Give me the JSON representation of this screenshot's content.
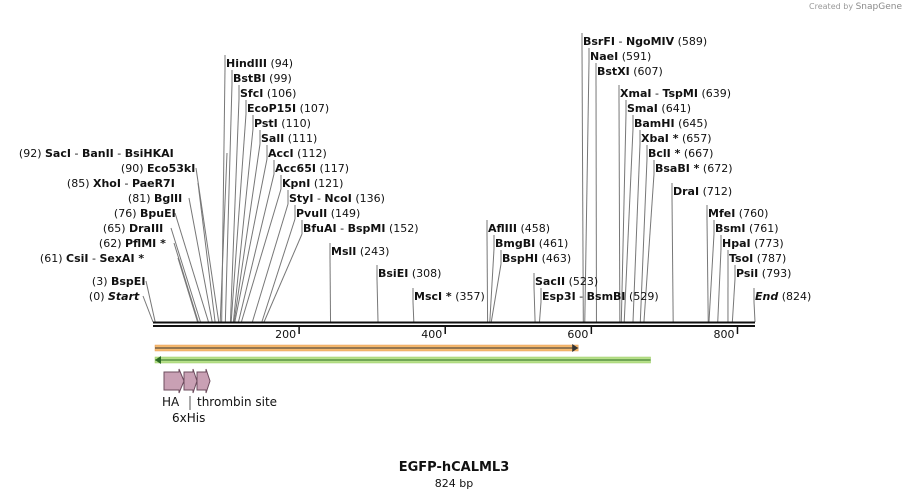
{
  "watermark": {
    "prefix": "Created by",
    "brand": "SnapGene"
  },
  "construct": {
    "name": "EGFP-hCALML3",
    "length_label": "824 bp",
    "length_bp": 824
  },
  "axis": {
    "ticks": [
      200,
      400,
      600,
      800
    ]
  },
  "features": {
    "orange_arrow": {
      "start": 1,
      "end": 582,
      "direction": "forward",
      "fill": "#f6b96e",
      "stroke": "#b8860b"
    },
    "green_arrow": {
      "start": 1,
      "end": 681,
      "direction": "reverse",
      "fill": "#b7e08a",
      "stroke": "#2e7d32"
    },
    "small_features": [
      {
        "name": "HA",
        "color": "#c9a0b4"
      },
      {
        "name": "6xHis",
        "color": "#c9a0b4"
      },
      {
        "name": "thrombin site",
        "color": "#c9a0b4"
      }
    ]
  },
  "sites": [
    {
      "id": "start",
      "parts": [
        "Start"
      ],
      "pos": "(0)",
      "bp": 0,
      "italic": true
    },
    {
      "id": "bspei",
      "parts": [
        "BspEI"
      ],
      "pos": "(3)",
      "bp": 3
    },
    {
      "id": "csii",
      "parts": [
        "CsiI",
        "SexAI *"
      ],
      "pos": "(61)",
      "bp": 61
    },
    {
      "id": "pfimi",
      "parts": [
        "PflMI *"
      ],
      "pos": "(62)",
      "bp": 62
    },
    {
      "id": "draiii",
      "parts": [
        "DraIII"
      ],
      "pos": "(65)",
      "bp": 65
    },
    {
      "id": "bpuei",
      "parts": [
        "BpuEI"
      ],
      "pos": "(76)",
      "bp": 76
    },
    {
      "id": "bglii",
      "parts": [
        "BglII"
      ],
      "pos": "(81)",
      "bp": 81
    },
    {
      "id": "xhoi",
      "parts": [
        "XhoI",
        "PaeR7I"
      ],
      "pos": "(85)",
      "bp": 85
    },
    {
      "id": "eco53ki",
      "parts": [
        "Eco53kI"
      ],
      "pos": "(90)",
      "bp": 90
    },
    {
      "id": "saci",
      "parts": [
        "SacI",
        "BanII",
        "BsiHKAI"
      ],
      "pos": "(92)",
      "bp": 92
    },
    {
      "id": "hindiii",
      "parts": [
        "HindIII"
      ],
      "pos": "(94)",
      "bp": 94
    },
    {
      "id": "bstbi",
      "parts": [
        "BstBI"
      ],
      "pos": "(99)",
      "bp": 99
    },
    {
      "id": "sfci",
      "parts": [
        "SfcI"
      ],
      "pos": "(106)",
      "bp": 106
    },
    {
      "id": "ecop15i",
      "parts": [
        "EcoP15I"
      ],
      "pos": "(107)",
      "bp": 107
    },
    {
      "id": "psti",
      "parts": [
        "PstI"
      ],
      "pos": "(110)",
      "bp": 110
    },
    {
      "id": "sali",
      "parts": [
        "SalI"
      ],
      "pos": "(111)",
      "bp": 111
    },
    {
      "id": "acci",
      "parts": [
        "AccI"
      ],
      "pos": "(112)",
      "bp": 112
    },
    {
      "id": "acc65i",
      "parts": [
        "Acc65I"
      ],
      "pos": "(117)",
      "bp": 117
    },
    {
      "id": "kpni",
      "parts": [
        "KpnI"
      ],
      "pos": "(121)",
      "bp": 121
    },
    {
      "id": "styi",
      "parts": [
        "StyI",
        "NcoI"
      ],
      "pos": "(136)",
      "bp": 136
    },
    {
      "id": "pvuii",
      "parts": [
        "PvuII"
      ],
      "pos": "(149)",
      "bp": 149
    },
    {
      "id": "bfuai",
      "parts": [
        "BfuAI",
        "BspMI"
      ],
      "pos": "(152)",
      "bp": 152
    },
    {
      "id": "msli",
      "parts": [
        "MslI"
      ],
      "pos": "(243)",
      "bp": 243
    },
    {
      "id": "bsiei",
      "parts": [
        "BsiEI"
      ],
      "pos": "(308)",
      "bp": 308
    },
    {
      "id": "msci",
      "parts": [
        "MscI *"
      ],
      "pos": "(357)",
      "bp": 357
    },
    {
      "id": "afliii",
      "parts": [
        "AflIII"
      ],
      "pos": "(458)",
      "bp": 458
    },
    {
      "id": "bmgbi",
      "parts": [
        "BmgBI"
      ],
      "pos": "(461)",
      "bp": 461
    },
    {
      "id": "bsphi",
      "parts": [
        "BspHI"
      ],
      "pos": "(463)",
      "bp": 463
    },
    {
      "id": "sacii",
      "parts": [
        "SacII"
      ],
      "pos": "(523)",
      "bp": 523
    },
    {
      "id": "esp3i",
      "parts": [
        "Esp3I",
        "BsmBI"
      ],
      "pos": "(529)",
      "bp": 529
    },
    {
      "id": "bsrfi",
      "parts": [
        "BsrFI",
        "NgoMIV"
      ],
      "pos": "(589)",
      "bp": 589
    },
    {
      "id": "naei",
      "parts": [
        "NaeI"
      ],
      "pos": "(591)",
      "bp": 591
    },
    {
      "id": "bstxi",
      "parts": [
        "BstXI"
      ],
      "pos": "(607)",
      "bp": 607
    },
    {
      "id": "xmai",
      "parts": [
        "XmaI",
        "TspMI"
      ],
      "pos": "(639)",
      "bp": 639
    },
    {
      "id": "smai",
      "parts": [
        "SmaI"
      ],
      "pos": "(641)",
      "bp": 641
    },
    {
      "id": "bamhi",
      "parts": [
        "BamHI"
      ],
      "pos": "(645)",
      "bp": 645
    },
    {
      "id": "xbai",
      "parts": [
        "XbaI *"
      ],
      "pos": "(657)",
      "bp": 657
    },
    {
      "id": "bcli",
      "parts": [
        "BclI *"
      ],
      "pos": "(667)",
      "bp": 667
    },
    {
      "id": "bsabi",
      "parts": [
        "BsaBI *"
      ],
      "pos": "(672)",
      "bp": 672
    },
    {
      "id": "drai",
      "parts": [
        "DraI"
      ],
      "pos": "(712)",
      "bp": 712
    },
    {
      "id": "mfei",
      "parts": [
        "MfeI"
      ],
      "pos": "(760)",
      "bp": 760
    },
    {
      "id": "bsmi",
      "parts": [
        "BsmI"
      ],
      "pos": "(761)",
      "bp": 761
    },
    {
      "id": "hpai",
      "parts": [
        "HpaI"
      ],
      "pos": "(773)",
      "bp": 773
    },
    {
      "id": "tsoi",
      "parts": [
        "TsoI"
      ],
      "pos": "(787)",
      "bp": 787
    },
    {
      "id": "psii",
      "parts": [
        "PsiI"
      ],
      "pos": "(793)",
      "bp": 793
    },
    {
      "id": "end",
      "parts": [
        "End"
      ],
      "pos": "(824)",
      "bp": 824,
      "italic": true
    }
  ]
}
